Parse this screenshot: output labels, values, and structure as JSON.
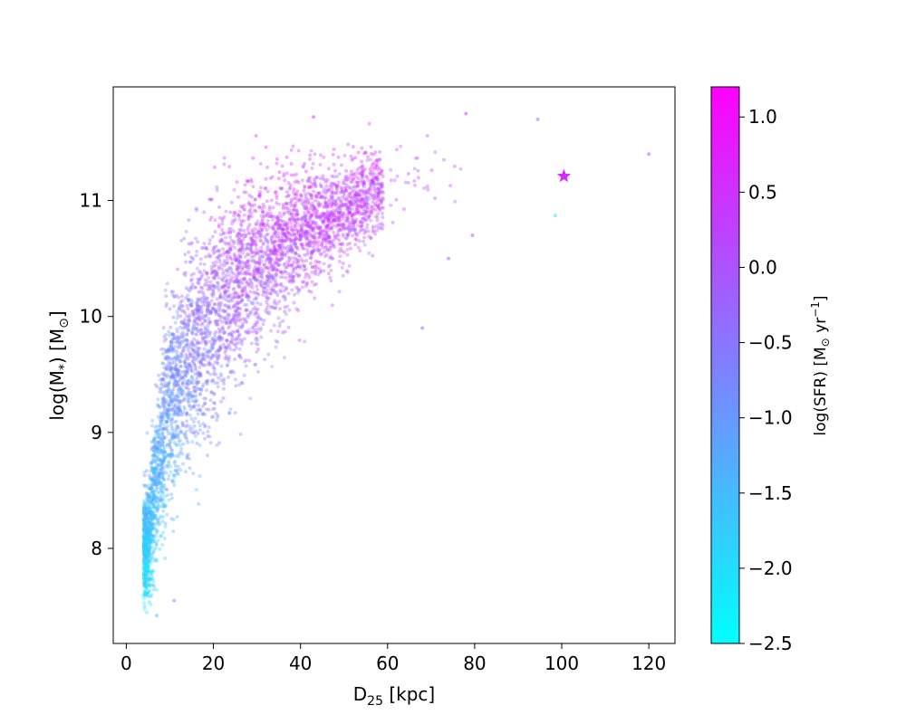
{
  "chart_data": {
    "type": "scatter",
    "title": "",
    "xlabel": {
      "main": "D",
      "sub": "25",
      "rest": " [kpc]"
    },
    "ylabel": {
      "pre": "log(M",
      "sub": "*",
      "mid": ") [M",
      "sub2": "⊙",
      "post": "]"
    },
    "xlim": [
      -3,
      126
    ],
    "ylim": [
      7.18,
      11.98
    ],
    "x_ticks": [
      0,
      20,
      40,
      60,
      80,
      100,
      120
    ],
    "y_ticks": [
      8,
      9,
      10,
      11
    ],
    "x_tick_labels": [
      "0",
      "20",
      "40",
      "60",
      "80",
      "100",
      "120"
    ],
    "y_tick_labels": [
      "8",
      "9",
      "10",
      "11"
    ],
    "grid": false,
    "colormap": "cool",
    "cmap_start": "#00ffff",
    "cmap_end": "#ff00ff",
    "colorbar": {
      "label": {
        "pre": "log(SFR) [M",
        "sub": "⊙",
        "mid": " yr",
        "sup": "−1",
        "post": "]"
      },
      "range": [
        -2.5,
        1.2
      ],
      "ticks": [
        -2.5,
        -2.0,
        -1.5,
        -1.0,
        -0.5,
        0.0,
        0.5,
        1.0
      ],
      "tick_labels": [
        "−2.5",
        "−2.0",
        "−1.5",
        "−1.0",
        "−0.5",
        "0.0",
        "0.5",
        "1.0"
      ]
    },
    "series": [
      {
        "kind": "galaxy-sample-density",
        "point_opacity": 0.35,
        "trend": [
          {
            "x": 5,
            "y_low": 7.5,
            "y_high": 8.6,
            "sfr": -1.7
          },
          {
            "x": 8,
            "y_low": 8.0,
            "y_high": 9.8,
            "sfr": -1.2
          },
          {
            "x": 10,
            "y_low": 8.3,
            "y_high": 10.2,
            "sfr": -1.0
          },
          {
            "x": 14,
            "y_low": 8.6,
            "y_high": 10.6,
            "sfr": -0.7
          },
          {
            "x": 18,
            "y_low": 8.9,
            "y_high": 10.9,
            "sfr": -0.4
          },
          {
            "x": 22,
            "y_low": 9.1,
            "y_high": 11.05,
            "sfr": -0.2
          },
          {
            "x": 28,
            "y_low": 9.5,
            "y_high": 11.25,
            "sfr": 0.0
          },
          {
            "x": 35,
            "y_low": 9.9,
            "y_high": 11.3,
            "sfr": 0.2
          },
          {
            "x": 45,
            "y_low": 10.3,
            "y_high": 11.35,
            "sfr": 0.3
          },
          {
            "x": 55,
            "y_low": 10.6,
            "y_high": 11.45,
            "sfr": 0.3
          },
          {
            "x": 70,
            "y_low": 10.9,
            "y_high": 11.6,
            "sfr": 0.2
          },
          {
            "x": 82,
            "y_low": 11.0,
            "y_high": 11.6,
            "sfr": 0.2
          }
        ],
        "outliers": [
          {
            "x": 94.5,
            "y": 11.7,
            "sfr": -0.1
          },
          {
            "x": 98.5,
            "y": 10.87,
            "sfr": -2.0
          },
          {
            "x": 120,
            "y": 11.4,
            "sfr": 0.2
          },
          {
            "x": 78,
            "y": 11.75,
            "sfr": 0.4
          },
          {
            "x": 79.5,
            "y": 10.7,
            "sfr": 0.1
          },
          {
            "x": 74,
            "y": 10.5,
            "sfr": 0.0
          },
          {
            "x": 68,
            "y": 9.9,
            "sfr": -0.2
          },
          {
            "x": 43,
            "y": 11.72,
            "sfr": 0.4
          },
          {
            "x": 7,
            "y": 7.42,
            "sfr": -1.5
          },
          {
            "x": 11,
            "y": 7.55,
            "sfr": -1.0
          }
        ]
      },
      {
        "kind": "highlighted-galaxy",
        "marker": "star",
        "points": [
          {
            "x": 100.5,
            "y": 11.21,
            "sfr": 0.6
          }
        ]
      }
    ]
  }
}
